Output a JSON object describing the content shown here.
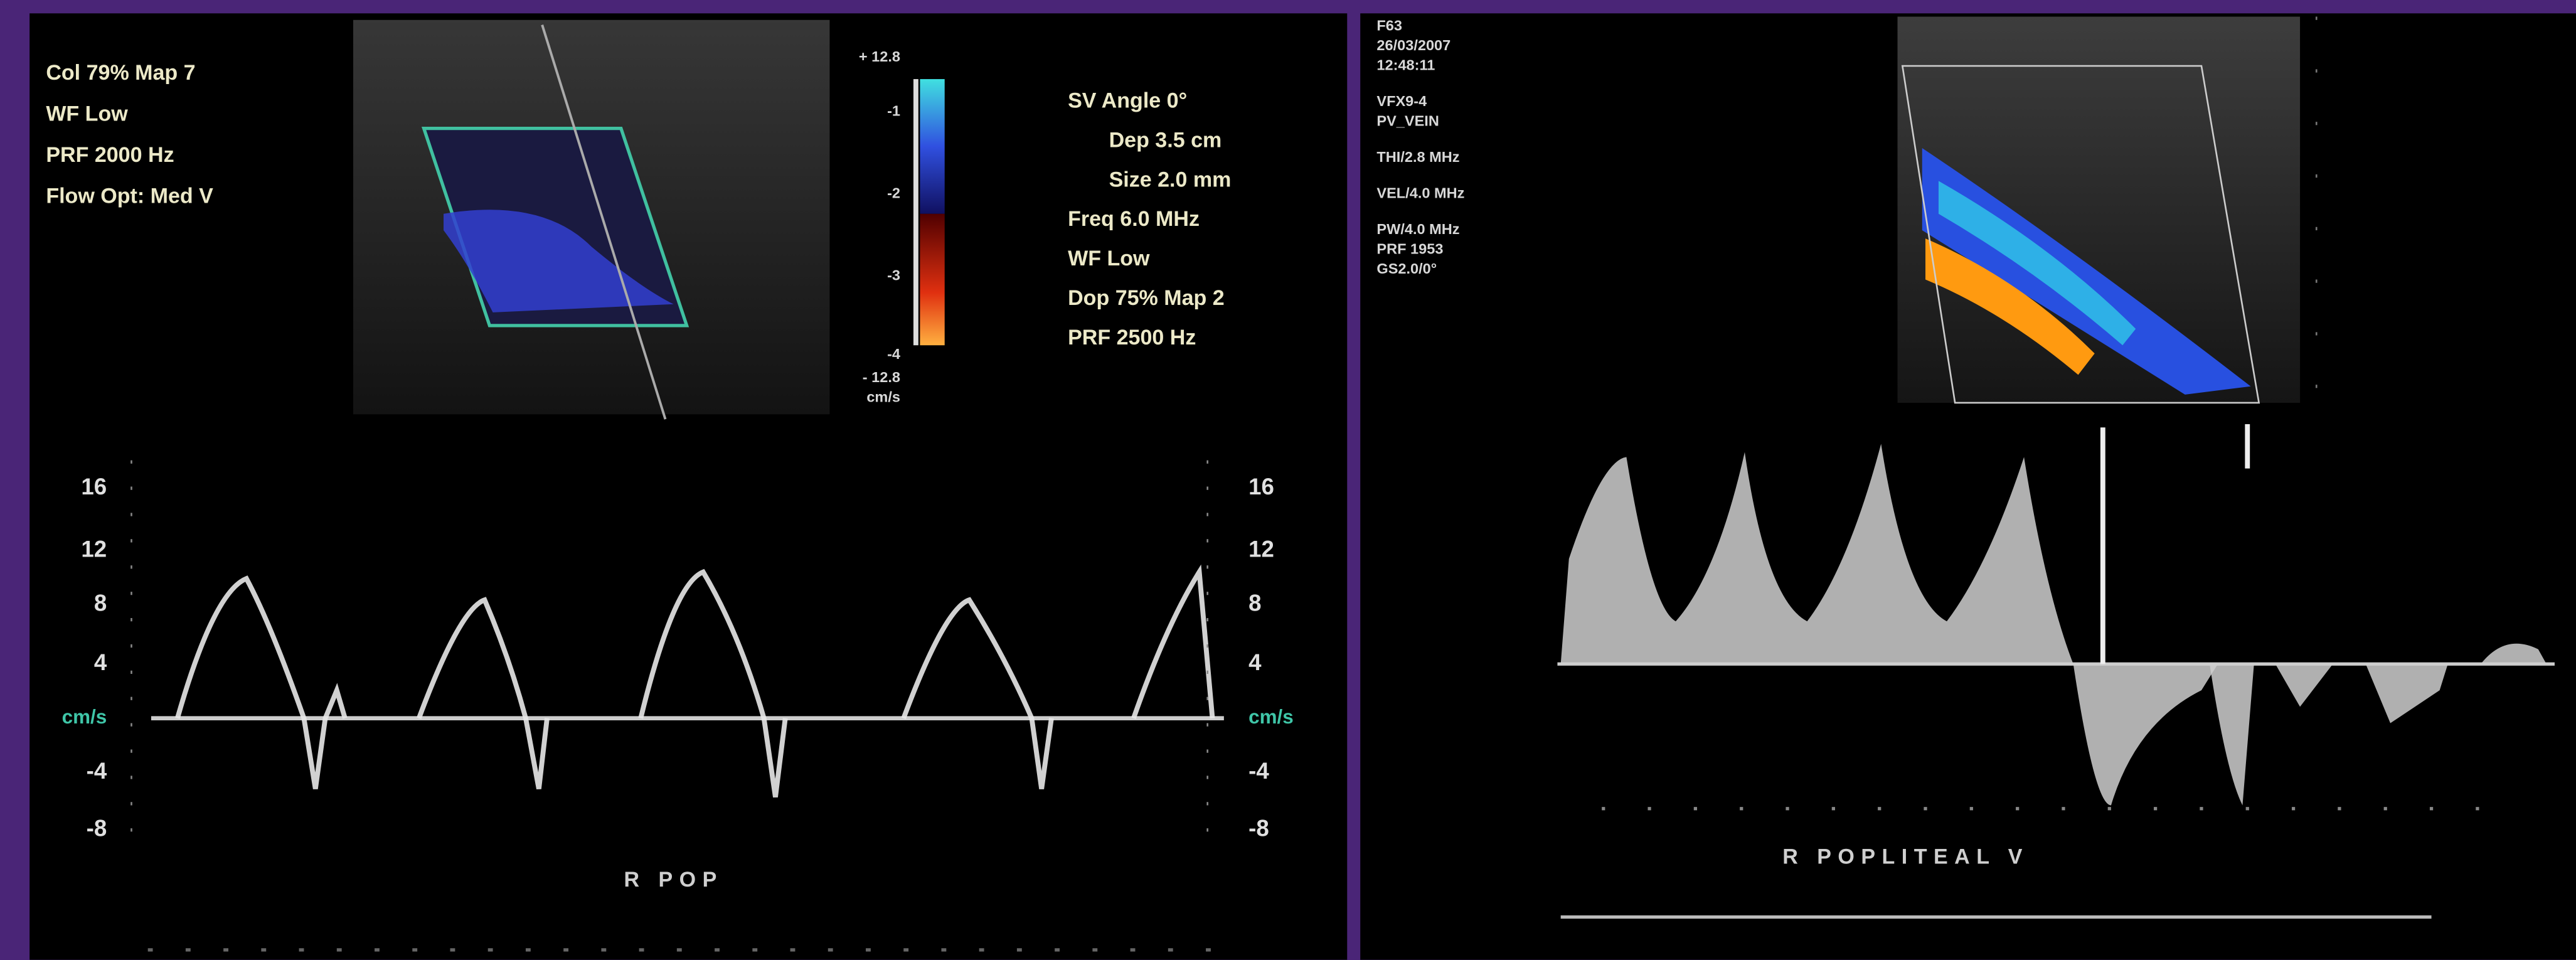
{
  "left_panel": {
    "color_settings": [
      "Col 79%  Map 7",
      "WF Low",
      "PRF 2000  Hz",
      "Flow Opt: Med V"
    ],
    "color_scale": [
      "+ 12.8",
      "-1",
      "-2",
      "-3",
      "-4",
      "- 12.8",
      "cm/s"
    ],
    "doppler_settings": [
      "SV Angle 0°",
      "Dep 3.5  cm",
      "Size 2.0  mm",
      "Freq 6.0  MHz",
      "WF Low",
      "Dop 75%  Map 2",
      "PRF 2500  Hz"
    ],
    "axis_left": [
      "16",
      "12",
      "8",
      "4",
      "cm/s",
      "-4",
      "-8"
    ],
    "axis_right": [
      "16",
      "12",
      "8",
      "4",
      "cm/s",
      "-4",
      "-8"
    ],
    "label": "R  POP"
  },
  "right_panel": {
    "info": [
      "F63",
      "26/03/2007",
      "12:48:11",
      "VFX9-4",
      "PV_VEIN",
      "THI/2.8 MHz",
      "VEL/4.0 MHz",
      "PW/4.0 MHz",
      "PRF 1953",
      "GS2.0/0°"
    ],
    "label": "R  POPLITEAL  V"
  }
}
